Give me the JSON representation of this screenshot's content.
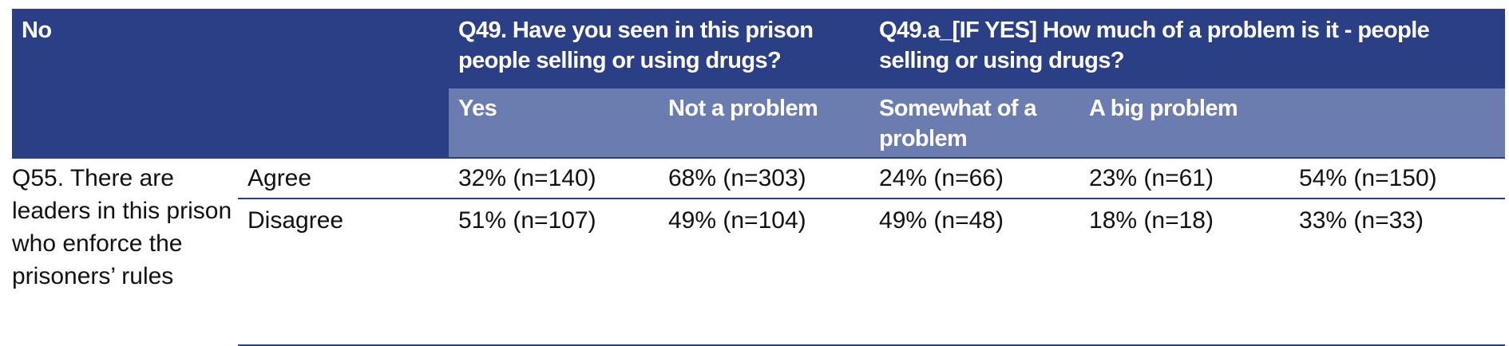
{
  "header": {
    "corner": "No",
    "q49_title": "Q49. Have you seen in this prison people selling or using drugs?",
    "q49a_title": "Q49.a_[IF YES] How much of a problem is it - people selling or using drugs?",
    "sub": [
      "Yes",
      "Not a problem",
      "Somewhat of a problem",
      "A big problem",
      ""
    ]
  },
  "question": "Q55. There are leaders in this prison who enforce the prisoners’ rules",
  "rows": [
    {
      "response": "Agree",
      "values": [
        "32% (n=140)",
        "68% (n=303)",
        "24% (n=66)",
        "23% (n=61)",
        "54% (n=150)"
      ]
    },
    {
      "response": "Disagree",
      "values": [
        "51% (n=107)",
        "49% (n=104)",
        "49% (n=48)",
        "18% (n=18)",
        "33% (n=33)"
      ]
    }
  ],
  "colors": {
    "header_dark": "#2b3f86",
    "header_light": "#6b7db0",
    "rule": "#2b3f86"
  }
}
